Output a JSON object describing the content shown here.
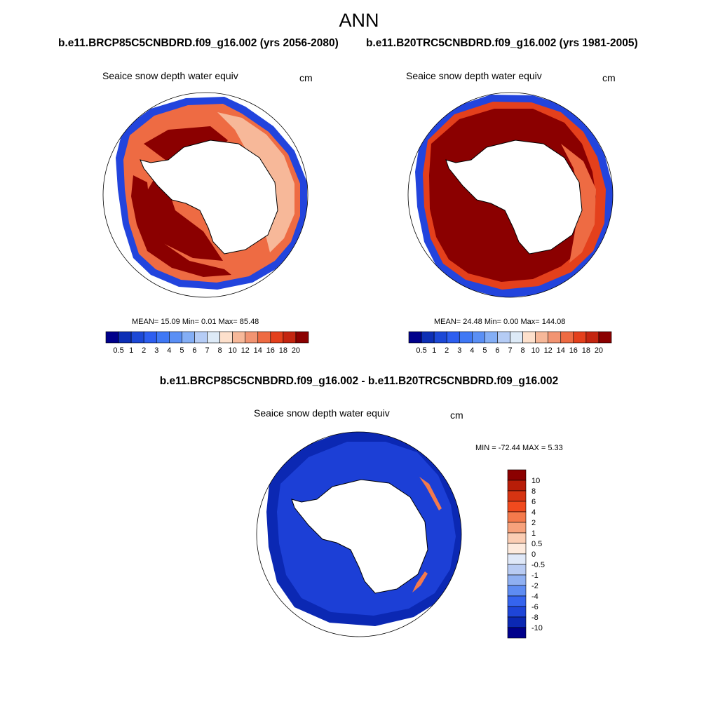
{
  "season": "ANN",
  "case1": "b.e11.BRCP85C5CNBDRD.f09_g16.002 (yrs 2056-2080)",
  "case2": "b.e11.B20TRC5CNBDRD.f09_g16.002 (yrs 1981-2005)",
  "diff_title": "b.e11.BRCP85C5CNBDRD.f09_g16.002 - b.e11.B20TRC5CNBDRD.f09_g16.002",
  "panels": [
    {
      "variable": "Seaice snow depth water equiv",
      "units": "cm",
      "stats": "MEAN=  15.09  Min=   0.01  Max=  85.48"
    },
    {
      "variable": "Seaice snow depth water equiv",
      "units": "cm",
      "stats": "MEAN=  24.48  Min=   0.00  Max= 144.08"
    },
    {
      "variable": "Seaice snow depth water equiv",
      "units": "cm",
      "stats": "MIN = -72.44 MAX =   5.33"
    }
  ],
  "colorbar_abs": {
    "levels": [
      "0.5",
      "1",
      "2",
      "3",
      "4",
      "5",
      "6",
      "7",
      "8",
      "10",
      "12",
      "14",
      "16",
      "18",
      "20"
    ],
    "colors": [
      "#00008b",
      "#0d2fb5",
      "#1c48d6",
      "#2d5ef0",
      "#3f78f5",
      "#5a8ff5",
      "#84aef5",
      "#b5ccf5",
      "#ddeaf7",
      "#fde0cc",
      "#f7b899",
      "#f29472",
      "#ee6b43",
      "#e4401c",
      "#c42510",
      "#8b0000"
    ]
  },
  "colorbar_diff": {
    "levels": [
      "10",
      "8",
      "6",
      "4",
      "2",
      "1",
      "0.5",
      "0",
      "-0.5",
      "-1",
      "-2",
      "-4",
      "-6",
      "-8",
      "-10"
    ],
    "colors": [
      "#8b0000",
      "#b81d08",
      "#d63412",
      "#f04a1e",
      "#f47a4c",
      "#f7a27c",
      "#fbcdb3",
      "#fdeadd",
      "#dfe8f8",
      "#b8cbf3",
      "#8fb0f2",
      "#5e8cf2",
      "#3564ee",
      "#1e45d8",
      "#0b28b3",
      "#00008b"
    ]
  },
  "map_fields": [
    {
      "outer_edge": "#2244dd",
      "ice_main": "#8b0000",
      "ice_secondary": "#ee6b43",
      "ice_tertiary": "#f7b899"
    },
    {
      "outer_edge": "#2244dd",
      "ice_main": "#8b0000",
      "ice_secondary": "#e4401c",
      "ice_tertiary": "#ee6b43"
    },
    {
      "outer_edge": "#00109b",
      "ice_main": "#0b28b3",
      "ice_secondary": "#1c3fd6",
      "ice_tertiary": "#f47a4c"
    }
  ]
}
